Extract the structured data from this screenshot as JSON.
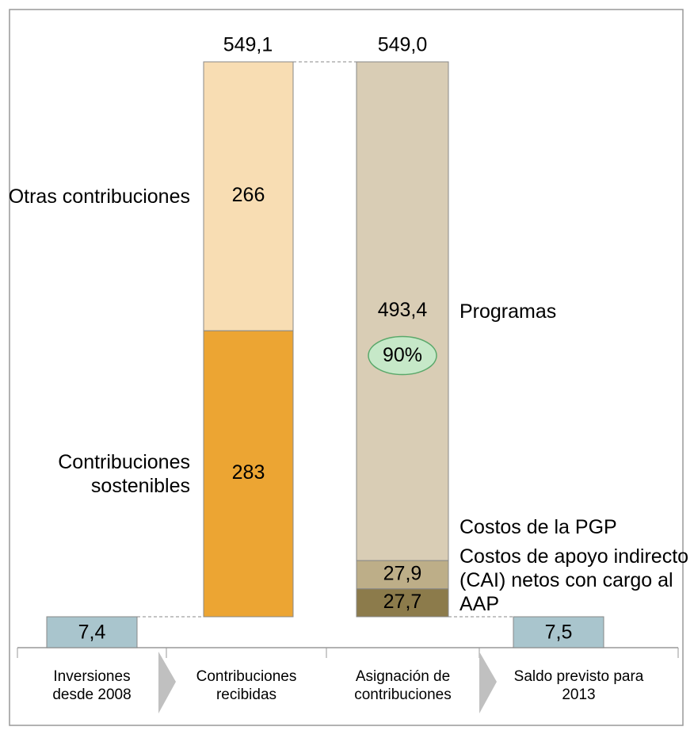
{
  "chart_data": {
    "type": "waterfall",
    "categories": [
      "Inversiones desde 2008",
      "Contribuciones recibidas",
      "Asignación de contribuciones",
      "Saldo previsto para 2013"
    ],
    "initial": {
      "value": 7.4,
      "label": "7,4",
      "color": "#a9c5cd"
    },
    "received": [
      {
        "name": "Contribuciones sostenibles",
        "value": 283,
        "label": "283",
        "color": "#eca533"
      },
      {
        "name": "Otras contribuciones",
        "value": 266,
        "label": "266",
        "color": "#f8ddb3"
      }
    ],
    "received_total": {
      "value": 549.1,
      "label": "549,1"
    },
    "allocated": [
      {
        "name": "Costos de apoyo indirecto (CAI) netos con cargo  al AAP",
        "value": 27.7,
        "label": "27,7",
        "color": "#8c7b4b"
      },
      {
        "name": "Costos de la PGP",
        "value": 27.9,
        "label": "27,9",
        "color": "#bdae88"
      },
      {
        "name": "Programas",
        "value": 493.4,
        "label": "493,4",
        "color": "#d9cdb5",
        "share": 90,
        "share_label": "90%"
      }
    ],
    "allocated_total": {
      "value": 549.0,
      "label": "549,0"
    },
    "final": {
      "value": 7.5,
      "label": "7,5",
      "color": "#a9c5cd"
    }
  }
}
